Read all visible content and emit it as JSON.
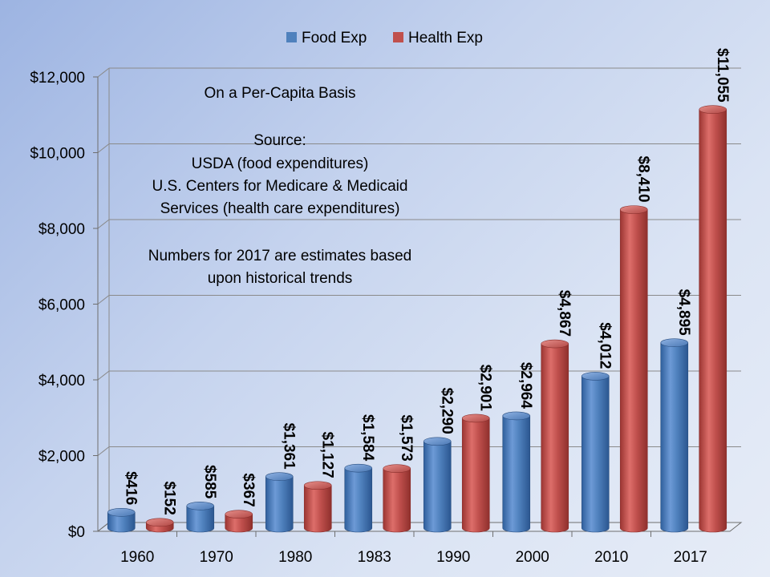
{
  "chart_data": {
    "type": "bar",
    "style": "3d-cylinder",
    "categories": [
      "1960",
      "1970",
      "1980",
      "1983",
      "1990",
      "2000",
      "2010",
      "2017"
    ],
    "series": [
      {
        "name": "Food Exp",
        "color": "#4f81bd",
        "values": [
          416,
          585,
          1361,
          1584,
          2290,
          2964,
          4012,
          4895
        ],
        "labels": [
          "$416",
          "$585",
          "$1,361",
          "$1,584",
          "$2,290",
          "$2,964",
          "$4,012",
          "$4,895"
        ]
      },
      {
        "name": "Health Exp",
        "color": "#c0504d",
        "values": [
          152,
          367,
          1127,
          1573,
          2901,
          4867,
          8410,
          11055
        ],
        "labels": [
          "$152",
          "$367",
          "$1,127",
          "$1,573",
          "$2,901",
          "$4,867",
          "$8,410",
          "$11,055"
        ]
      }
    ],
    "ylim": [
      0,
      12000
    ],
    "yticks": [
      0,
      2000,
      4000,
      6000,
      8000,
      10000,
      12000
    ],
    "ytick_labels": [
      "$0",
      "$2,000",
      "$4,000",
      "$6,000",
      "$8,000",
      "$10,000",
      "$12,000"
    ],
    "grid": true,
    "legend_position": "top-center",
    "annotations": [
      "On a Per-Capita Basis",
      "",
      "Source:",
      "USDA (food expenditures)",
      "U.S. Centers for Medicare & Medicaid",
      "Services (health care expenditures)",
      "",
      "Numbers for 2017 are estimates based",
      "upon historical trends"
    ]
  }
}
